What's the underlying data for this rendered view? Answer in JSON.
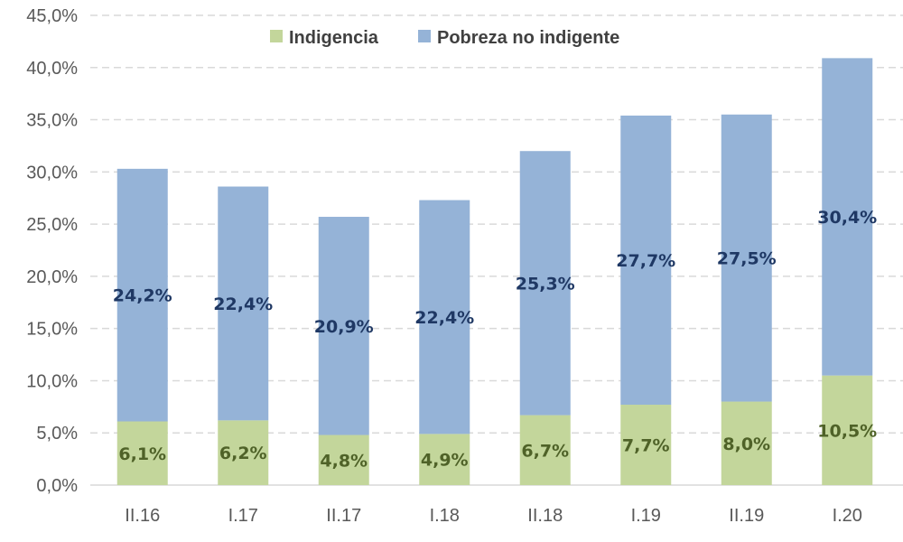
{
  "chart_data": {
    "type": "bar",
    "stacked": true,
    "title": "",
    "xlabel": "",
    "ylabel": "",
    "ylim": [
      0,
      45
    ],
    "yticks": [
      "0,0%",
      "5,0%",
      "10,0%",
      "15,0%",
      "20,0%",
      "25,0%",
      "30,0%",
      "35,0%",
      "40,0%",
      "45,0%"
    ],
    "categories": [
      "II.16",
      "I.17",
      "II.17",
      "I.18",
      "II.18",
      "I.19",
      "II.19",
      "I.20"
    ],
    "series": [
      {
        "name": "Indigencia",
        "color": "#c3d69b",
        "label_color": "#4f6228",
        "values": [
          6.1,
          6.2,
          4.8,
          4.9,
          6.7,
          7.7,
          8.0,
          10.5
        ],
        "labels": [
          "6,1%",
          "6,2%",
          "4,8%",
          "4,9%",
          "6,7%",
          "7,7%",
          "8,0%",
          "10,5%"
        ]
      },
      {
        "name": "Pobreza no indigente",
        "color": "#95b3d7",
        "label_color": "#1f3864",
        "values": [
          24.2,
          22.4,
          20.9,
          22.4,
          25.3,
          27.7,
          27.5,
          30.4
        ],
        "labels": [
          "24,2%",
          "22,4%",
          "20,9%",
          "22,4%",
          "25,3%",
          "27,7%",
          "27,5%",
          "30,4%"
        ]
      }
    ],
    "grid": true,
    "legend": "top-center"
  }
}
